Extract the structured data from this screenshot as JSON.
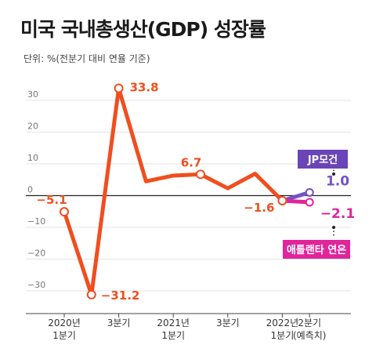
{
  "chart_data": {
    "type": "line",
    "title": "미국 국내총생산(GDP) 성장률",
    "unit_note": "단위: %(전분기 대비 연율 기준)",
    "ylim": [
      -35,
      36
    ],
    "y_ticks": [
      30,
      20,
      10,
      0,
      -10,
      -20,
      -30
    ],
    "grid": true,
    "x_labels": [
      {
        "line1": "2020년",
        "line2": "1분기"
      },
      {
        "line1": "3분기",
        "line2": ""
      },
      {
        "line1": "2021년",
        "line2": "1분기"
      },
      {
        "line1": "3분기",
        "line2": ""
      },
      {
        "line1": "2022년",
        "line2": "1분기"
      },
      {
        "line1": "2분기",
        "line2": "(예측치)"
      }
    ],
    "x_label_positions": [
      0,
      2,
      4,
      6,
      8,
      9
    ],
    "series": [
      {
        "name": "",
        "color": "#f04e1e",
        "x": [
          0,
          1,
          2,
          3,
          4,
          5,
          6,
          7,
          8
        ],
        "values": [
          -5.1,
          -31.2,
          33.8,
          4.5,
          6.3,
          6.7,
          2.3,
          6.9,
          -1.6
        ]
      }
    ],
    "forecasts": [
      {
        "name": "JP모건",
        "value": 1.0,
        "color": "#7452c6",
        "label_bg": "#6a45b8"
      },
      {
        "name": "애틀랜타 연은",
        "value": -2.1,
        "color": "#e0259b",
        "label_bg": "#e0259b"
      }
    ],
    "data_labels": [
      {
        "index": 0,
        "text": "−5.1"
      },
      {
        "index": 1,
        "text": "−31.2"
      },
      {
        "index": 2,
        "text": "33.8"
      },
      {
        "index": 5,
        "text": "6.7"
      },
      {
        "index": 8,
        "text": "−1.6"
      }
    ],
    "forecast_labels": [
      {
        "text": "1.0",
        "color": "#7452c6"
      },
      {
        "text": "−2.1",
        "color": "#e0259b"
      }
    ]
  }
}
